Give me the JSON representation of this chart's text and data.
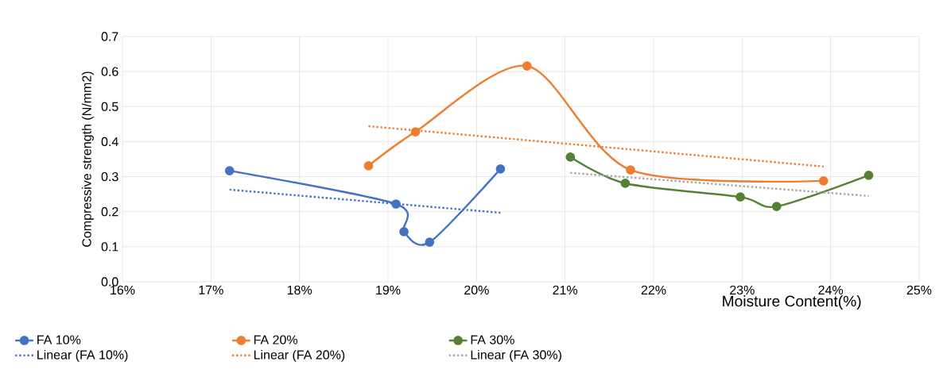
{
  "chart_data": {
    "type": "line",
    "xlabel": "Moisture Content(%)",
    "ylabel": "Compressive strength (N/mm2)",
    "xlim": [
      16,
      25
    ],
    "xticks": [
      {
        "value": 16,
        "label": "16%"
      },
      {
        "value": 17,
        "label": "17%"
      },
      {
        "value": 18,
        "label": "18%"
      },
      {
        "value": 19,
        "label": "19%"
      },
      {
        "value": 20,
        "label": "20%"
      },
      {
        "value": 21,
        "label": "21%"
      },
      {
        "value": 22,
        "label": "22%"
      },
      {
        "value": 23,
        "label": "23%"
      },
      {
        "value": 24,
        "label": "24%"
      },
      {
        "value": 25,
        "label": "25%"
      }
    ],
    "ylim": [
      0,
      0.7
    ],
    "yticks": [
      {
        "value": 0,
        "label": "0.0"
      },
      {
        "value": 0.1,
        "label": "0.1"
      },
      {
        "value": 0.2,
        "label": "0.2"
      },
      {
        "value": 0.3,
        "label": "0.3"
      },
      {
        "value": 0.4,
        "label": "0.4"
      },
      {
        "value": 0.5,
        "label": "0.5"
      },
      {
        "value": 0.6,
        "label": "0.6"
      },
      {
        "value": 0.7,
        "label": "0.7"
      }
    ],
    "grid": true,
    "legend": "bottom",
    "series": [
      {
        "name": "FA 10%",
        "color": "#4472c4",
        "marker": "circle",
        "line_style": "solid",
        "x": [
          17.21,
          19.09,
          19.18,
          19.47,
          20.27
        ],
        "values": [
          0.317,
          0.222,
          0.143,
          0.113,
          0.322
        ]
      },
      {
        "name": "FA 20%",
        "color": "#ed7d31",
        "marker": "circle",
        "line_style": "solid",
        "x": [
          18.78,
          19.31,
          20.57,
          21.74,
          23.92
        ],
        "values": [
          0.331,
          0.428,
          0.616,
          0.319,
          0.288
        ]
      },
      {
        "name": "FA 30%",
        "color": "#548235",
        "marker": "circle",
        "line_style": "solid",
        "x": [
          21.06,
          21.68,
          22.98,
          23.39,
          24.43
        ],
        "values": [
          0.356,
          0.281,
          0.242,
          0.215,
          0.304
        ]
      },
      {
        "name": "Linear (FA 10%)",
        "color": "#4472c4",
        "marker": "none",
        "line_style": "dotted",
        "x": [
          17.21,
          20.27
        ],
        "values": [
          0.263,
          0.197
        ]
      },
      {
        "name": "Linear (FA 20%)",
        "color": "#ed7d31",
        "marker": "none",
        "line_style": "dotted",
        "x": [
          18.78,
          23.92
        ],
        "values": [
          0.444,
          0.329
        ]
      },
      {
        "name": "Linear (FA 30%)",
        "color": "#a5a5a5",
        "marker": "none",
        "line_style": "dotted",
        "x": [
          21.06,
          24.43
        ],
        "values": [
          0.311,
          0.245
        ]
      }
    ]
  }
}
